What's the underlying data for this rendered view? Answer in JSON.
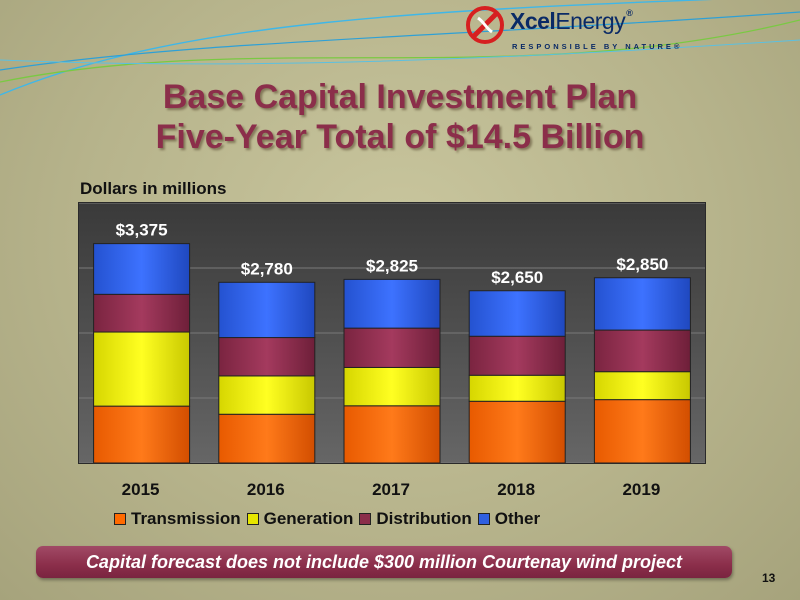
{
  "logo": {
    "brand_bold": "Xcel",
    "brand_light": "Energy",
    "reg_mark": "®",
    "tagline": "RESPONSIBLE BY NATURE®"
  },
  "title": {
    "line1": "Base Capital Investment Plan",
    "line2": "Five-Year Total of $14.5 Billion"
  },
  "banner": {
    "text": "Capital forecast does not include $300 million Courtenay wind project"
  },
  "page_number": "13",
  "colors": {
    "title": "#8b2e4a",
    "transmission": "#ff6a00",
    "generation": "#e6e600",
    "distribution": "#8b2e4a",
    "other": "#2f5fe0"
  },
  "chart_data": {
    "type": "bar",
    "stacked": true,
    "ylabel": "Dollars in millions",
    "ylim": [
      0,
      4000
    ],
    "grid": true,
    "legend_position": "bottom",
    "categories": [
      "2015",
      "2016",
      "2017",
      "2018",
      "2019"
    ],
    "series": [
      {
        "name": "Transmission",
        "values": [
          875,
          750,
          880,
          950,
          975
        ]
      },
      {
        "name": "Generation",
        "values": [
          1140,
          590,
          590,
          400,
          430
        ]
      },
      {
        "name": "Distribution",
        "values": [
          580,
          590,
          605,
          600,
          640
        ]
      },
      {
        "name": "Other",
        "values": [
          780,
          850,
          750,
          700,
          805
        ]
      }
    ],
    "totals": [
      "$3,375",
      "$2,780",
      "$2,825",
      "$2,650",
      "$2,850"
    ]
  }
}
